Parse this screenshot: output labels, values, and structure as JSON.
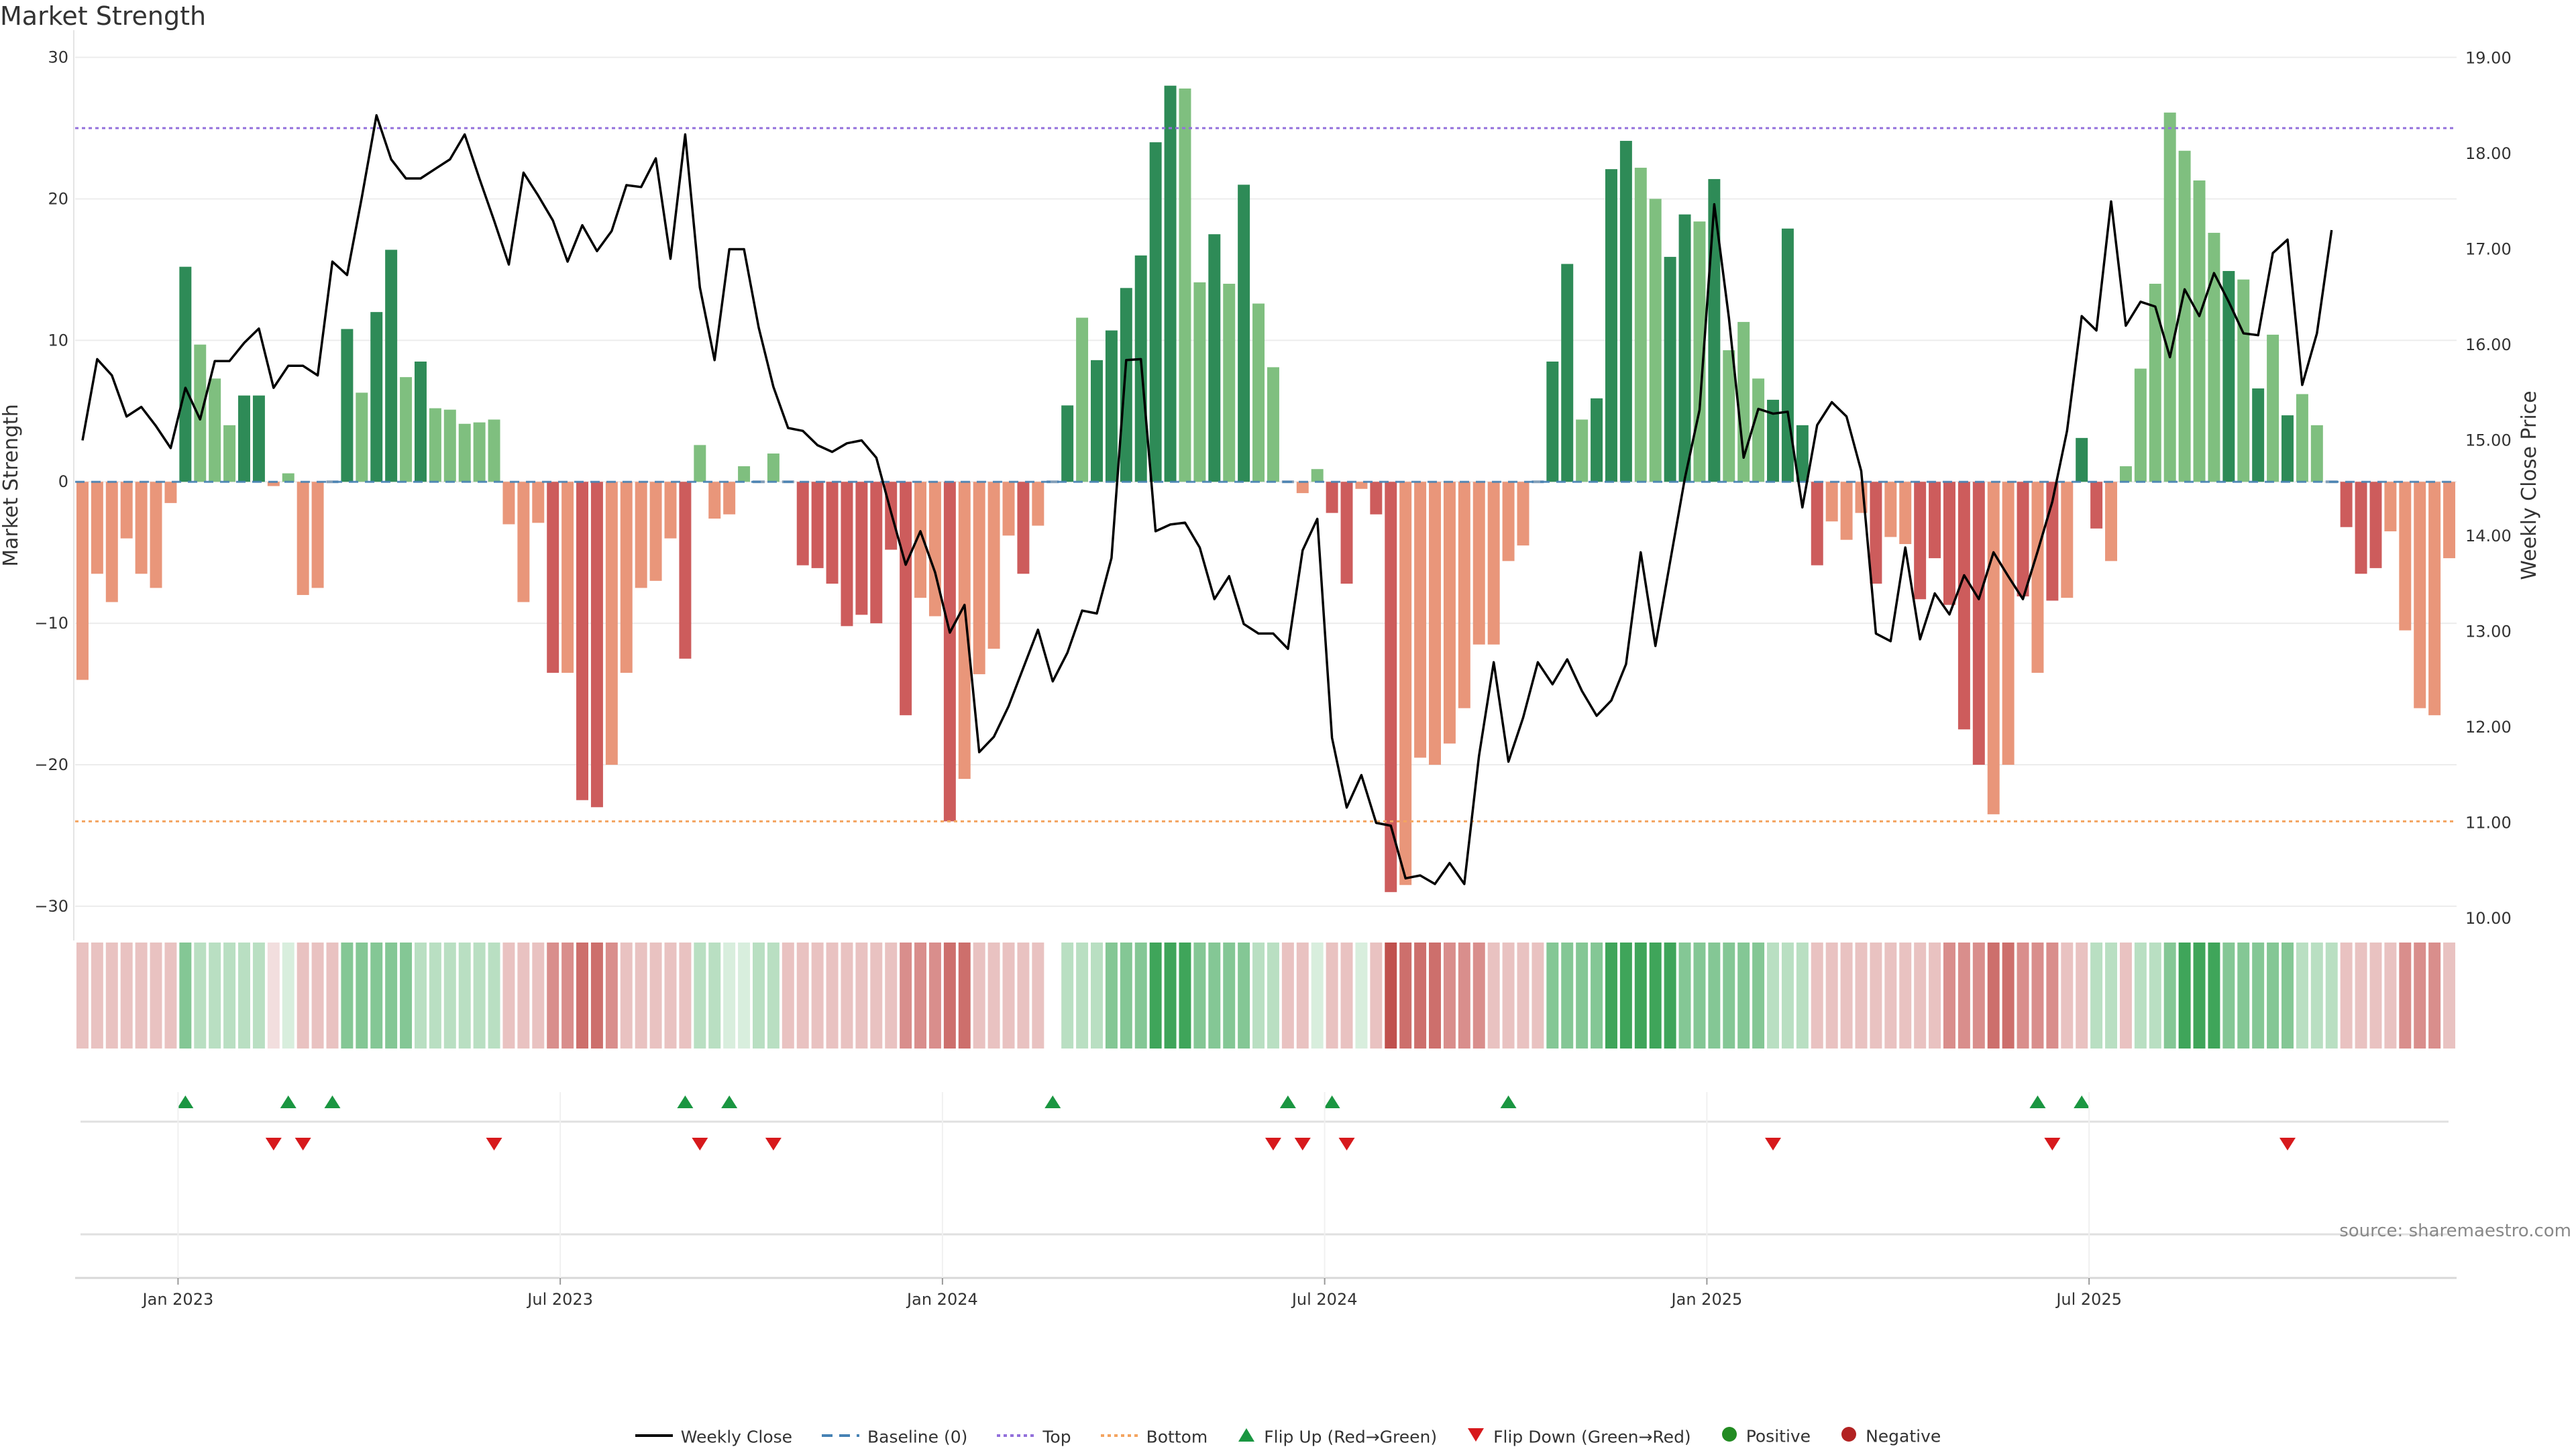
{
  "title": "Market Strength",
  "source": "source: sharemaestro.com",
  "colors": {
    "pos_dark": "#2e8b57",
    "pos_light": "#7fbf7f",
    "neg_dark": "#cd5c5c",
    "neg_light": "#e9967a",
    "price_line": "#000000",
    "baseline": "#4682b4",
    "top": "#9370db",
    "bottom": "#f4a460",
    "flip_up": "#1a9641",
    "flip_down": "#d7191c",
    "positive_dot": "#228b22",
    "negative_dot": "#b22222"
  },
  "legend": [
    {
      "label": "Weekly Close",
      "type": "line"
    },
    {
      "label": "Baseline (0)",
      "type": "dashed"
    },
    {
      "label": "Top",
      "type": "dotted-purple"
    },
    {
      "label": "Bottom",
      "type": "dotted-orange"
    },
    {
      "label": "Flip Up (Red→Green)",
      "type": "triangle-up"
    },
    {
      "label": "Flip Down (Green→Red)",
      "type": "triangle-down"
    },
    {
      "label": "Positive",
      "type": "dot-green"
    },
    {
      "label": "Negative",
      "type": "dot-red"
    }
  ],
  "chart_data": {
    "type": "bar",
    "title": "Market Strength",
    "ylabel": "Market Strength",
    "y2label": "Weekly Close Price",
    "ylim": [
      -31,
      30.5
    ],
    "y2lim": [
      9.98,
      19.08
    ],
    "yticks": [
      30,
      20,
      10,
      0,
      -10,
      -20,
      -30
    ],
    "yticklabels": [
      "30",
      "20",
      "10",
      "0",
      "−10",
      "−20",
      "−30"
    ],
    "y2ticks": [
      19.0,
      18.0,
      17.0,
      16.0,
      15.0,
      14.0,
      13.0,
      12.0,
      11.0,
      10.0
    ],
    "y2ticklabels": [
      "19.00",
      "18.00",
      "17.00",
      "16.00",
      "15.00",
      "14.00",
      "13.00",
      "12.00",
      "11.00",
      "10.00"
    ],
    "xticks": [
      7,
      33,
      59,
      85,
      111,
      137
    ],
    "xticklabels": [
      "Jan 2023",
      "Jul 2023",
      "Jan 2024",
      "Jul 2024",
      "Jan 2025",
      "Jul 2025"
    ],
    "top_line": 25,
    "bottom_line": -24,
    "strength": [
      -14,
      -6.5,
      -8.5,
      -4,
      -6.5,
      -7.5,
      -1.5,
      15.2,
      9.7,
      7.3,
      4,
      6.1,
      6.1,
      -0.3,
      0.6,
      -8,
      -7.5,
      0,
      10.8,
      6.3,
      12,
      16.4,
      7.4,
      8.5,
      5.2,
      5.1,
      4.1,
      4.2,
      4.4,
      -3,
      -8.5,
      -2.9,
      -13.5,
      -13.5,
      -22.5,
      -23,
      -20,
      -13.5,
      -7.5,
      -7,
      -4,
      -12.5,
      2.6,
      -2.6,
      -2.3,
      1.1,
      0,
      2,
      0,
      -5.9,
      -6.1,
      -7.2,
      -10.2,
      -9.4,
      -10,
      -4.8,
      -16.5,
      -8.2,
      -9.5,
      -24,
      -21,
      -13.6,
      -11.8,
      -3.8,
      -6.5,
      -3.1,
      0,
      5.4,
      11.6,
      8.6,
      10.7,
      13.7,
      16,
      24,
      28,
      27.8,
      14.1,
      17.5,
      14,
      21,
      12.6,
      8.1,
      0,
      -0.8,
      0.9,
      -2.2,
      -7.2,
      -0.5,
      -2.3,
      -29,
      -28.5,
      -19.5,
      -20,
      -18.5,
      -16,
      -11.5,
      -11.5,
      -5.6,
      -4.5,
      0,
      8.5,
      15.4,
      4.4,
      5.9,
      22.1,
      24.1,
      22.2,
      20,
      15.9,
      18.9,
      18.4,
      21.4,
      9.3,
      11.3,
      7.3,
      5.8,
      17.9,
      4,
      -5.9,
      -2.8,
      -4.1,
      -2.2,
      -7.2,
      -3.9,
      -4.4,
      -8.3,
      -5.4,
      -8.7,
      -17.5,
      -20,
      -23.5,
      -20,
      -8.1,
      -13.5,
      -8.4,
      -8.2,
      3.1,
      -3.3,
      -5.6,
      1.1,
      8,
      14,
      26.1,
      23.4,
      21.3,
      17.6,
      14.9,
      14.3,
      6.6,
      10.4,
      4.7,
      6.2,
      4,
      0,
      -3.2,
      -6.5,
      -6.1,
      -3.5,
      -10.5,
      -16,
      -16.5,
      -5.4
    ],
    "price": [
      15.0,
      15.85,
      15.68,
      15.25,
      15.35,
      15.15,
      14.92,
      15.55,
      15.22,
      15.83,
      15.83,
      16.02,
      16.17,
      15.55,
      15.78,
      15.78,
      15.68,
      16.87,
      16.73,
      17.54,
      18.4,
      17.94,
      17.74,
      17.74,
      17.84,
      17.94,
      18.2,
      17.74,
      17.3,
      16.84,
      17.8,
      17.56,
      17.3,
      16.87,
      17.25,
      16.98,
      17.19,
      17.67,
      17.65,
      17.95,
      16.9,
      18.2,
      16.6,
      15.84,
      17.0,
      17.0,
      16.18,
      15.56,
      15.13,
      15.1,
      14.95,
      14.88,
      14.97,
      15.0,
      14.82,
      14.25,
      13.7,
      14.05,
      13.62,
      12.99,
      13.28,
      11.74,
      11.9,
      12.22,
      12.62,
      13.02,
      12.48,
      12.78,
      13.22,
      13.19,
      13.77,
      15.84,
      15.85,
      14.05,
      14.12,
      14.14,
      13.88,
      13.34,
      13.58,
      13.08,
      12.98,
      12.98,
      12.82,
      13.85,
      14.18,
      11.89,
      11.16,
      11.5,
      11.0,
      10.97,
      10.42,
      10.45,
      10.36,
      10.58,
      10.36,
      11.7,
      12.68,
      11.64,
      12.1,
      12.68,
      12.45,
      12.71,
      12.38,
      12.12,
      12.28,
      12.66,
      13.83,
      12.85,
      13.73,
      14.6,
      15.32,
      17.47,
      16.28,
      14.82,
      15.33,
      15.28,
      15.3,
      14.3,
      15.16,
      15.4,
      15.25,
      14.68,
      12.98,
      12.9,
      13.88,
      12.92,
      13.4,
      13.18,
      13.59,
      13.34,
      13.83,
      13.58,
      13.34,
      13.84,
      14.36,
      15.1,
      16.3,
      16.15,
      17.5,
      16.2,
      16.45,
      16.4,
      15.87,
      16.58,
      16.3,
      16.75,
      16.45,
      16.12,
      16.1,
      16.96,
      17.1,
      15.58,
      16.12,
      17.2
    ],
    "tint": [
      "nl3",
      "nl3",
      "nl3",
      "nl3",
      "nl3",
      "nl3",
      "nl3",
      "pm2",
      "pl3",
      "pl3",
      "pl3",
      "pl3",
      "pl3",
      "nl4",
      "pl4",
      "nl3",
      "nl3",
      "nl3",
      "pm2",
      "pm2",
      "pm2",
      "pm2",
      "pm2",
      "pl3",
      "pl3",
      "pl3",
      "pl3",
      "pl3",
      "pl3",
      "nl3",
      "nl3",
      "nl3",
      "nm2",
      "nm2",
      "nm1",
      "nm1",
      "nm2",
      "nl3",
      "nl3",
      "nl3",
      "nl3",
      "nl3",
      "pl3",
      "pl3",
      "pl4",
      "pl4",
      "pl3",
      "pl3",
      "nl3",
      "nl3",
      "nl3",
      "nl3",
      "nl3",
      "nl3",
      "nl3",
      "nl3",
      "nm2",
      "nm2",
      "nm2",
      "nm1",
      "nm1",
      "nl3",
      "nl3",
      "nl3",
      "nl3",
      "nl3",
      "gap",
      "pl3",
      "pl3",
      "pl3",
      "pm2",
      "pm2",
      "pm2",
      "pd1",
      "pd1",
      "pd1",
      "pm2",
      "pm2",
      "pm2",
      "pm2",
      "pl3",
      "pl3",
      "nl3",
      "nl3",
      "pl4",
      "nl3",
      "nl3",
      "pl4",
      "nl3",
      "nd1",
      "nm1",
      "nm1",
      "nm1",
      "nm2",
      "nm2",
      "nm2",
      "nl3",
      "nl3",
      "nl3",
      "nl3",
      "pm2",
      "pm2",
      "pm2",
      "pm2",
      "pd1",
      "pd1",
      "pd1",
      "pd1",
      "pd1",
      "pm2",
      "pm2",
      "pm2",
      "pm2",
      "pm2",
      "pm2",
      "pl3",
      "pl3",
      "pl3",
      "nl3",
      "nl3",
      "nl3",
      "nl3",
      "nl3",
      "nl3",
      "nl3",
      "nl3",
      "nl3",
      "nm2",
      "nm2",
      "nm2",
      "nm1",
      "nm1",
      "nm2",
      "nm2",
      "nm2",
      "nl3",
      "nl3",
      "pl3",
      "pl3",
      "nl3",
      "pl3",
      "pl3",
      "pm2",
      "pd1",
      "pd1",
      "pd1",
      "pm2",
      "pm2",
      "pm2",
      "pm2",
      "pm2",
      "pl3",
      "pl3",
      "pl3",
      "nl3",
      "nl3",
      "nl3",
      "nl3",
      "nm2",
      "nm2",
      "nm2",
      "nl3"
    ],
    "flip_up": [
      7,
      14,
      17,
      41,
      44,
      66,
      82,
      85,
      97,
      133,
      136
    ],
    "flip_down": [
      13,
      15,
      28,
      42,
      47,
      81,
      83,
      86,
      115,
      134,
      150
    ]
  }
}
